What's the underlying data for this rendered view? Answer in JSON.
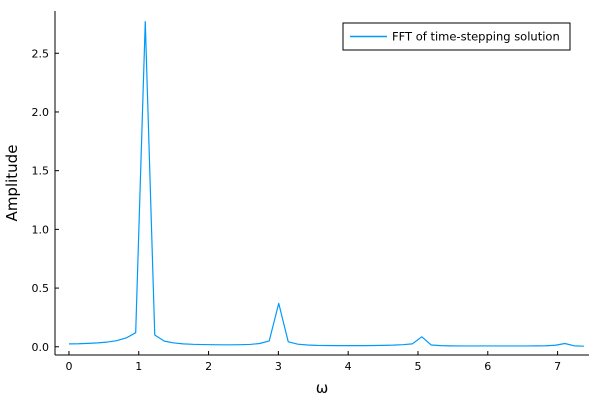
{
  "chart_data": {
    "type": "line",
    "xlabel": "ω",
    "ylabel": "Amplitude",
    "xlim": [
      -0.2,
      7.45
    ],
    "ylim": [
      -0.07,
      2.86
    ],
    "x_ticks": [
      0,
      1,
      2,
      3,
      4,
      5,
      6,
      7
    ],
    "y_ticks": [
      0.0,
      0.5,
      1.0,
      1.5,
      2.0,
      2.5
    ],
    "x_tick_labels": [
      "0",
      "1",
      "2",
      "3",
      "4",
      "5",
      "6",
      "7"
    ],
    "y_tick_labels": [
      "0.0",
      "0.5",
      "1.0",
      "1.5",
      "2.0",
      "2.5"
    ],
    "grid": false,
    "legend_position": "top-right",
    "series": [
      {
        "name": "FFT of time-stepping solution",
        "color": "#009AFA",
        "x": [
          0.0,
          0.137,
          0.273,
          0.41,
          0.546,
          0.683,
          0.82,
          0.956,
          1.093,
          1.229,
          1.366,
          1.503,
          1.639,
          1.776,
          1.912,
          2.049,
          2.186,
          2.322,
          2.459,
          2.595,
          2.732,
          2.869,
          3.005,
          3.142,
          3.279,
          3.415,
          3.552,
          3.688,
          3.825,
          3.962,
          4.098,
          4.235,
          4.371,
          4.508,
          4.645,
          4.781,
          4.918,
          5.055,
          5.191,
          5.328,
          5.464,
          5.601,
          5.738,
          5.874,
          6.011,
          6.147,
          6.284,
          6.421,
          6.557,
          6.694,
          6.83,
          6.967,
          7.104,
          7.24,
          7.377
        ],
        "y": [
          0.025,
          0.026,
          0.029,
          0.033,
          0.04,
          0.052,
          0.075,
          0.12,
          2.77,
          0.1,
          0.048,
          0.033,
          0.025,
          0.021,
          0.019,
          0.018,
          0.017,
          0.017,
          0.018,
          0.02,
          0.028,
          0.05,
          0.37,
          0.042,
          0.022,
          0.015,
          0.012,
          0.011,
          0.01,
          0.01,
          0.01,
          0.01,
          0.011,
          0.012,
          0.014,
          0.018,
          0.025,
          0.085,
          0.015,
          0.01,
          0.008,
          0.007,
          0.007,
          0.007,
          0.007,
          0.007,
          0.007,
          0.007,
          0.007,
          0.008,
          0.009,
          0.013,
          0.028,
          0.008,
          0.005
        ]
      }
    ]
  }
}
